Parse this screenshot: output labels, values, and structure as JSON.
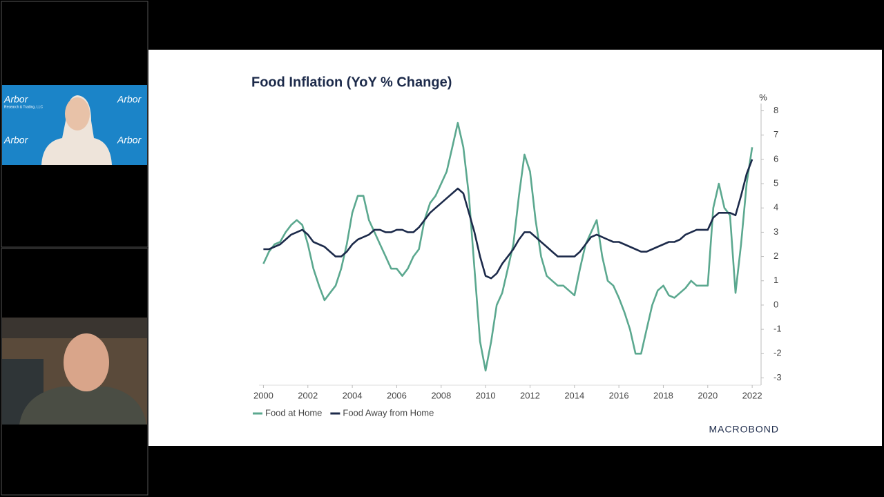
{
  "video_tiles": {
    "backdrop_brand": "Arbor",
    "backdrop_tagline": "Research & Trading, LLC"
  },
  "chart_data": {
    "type": "line",
    "title": "Food Inflation (YoY % Change)",
    "ylabel": "%",
    "source": "MACROBOND",
    "x": [
      2000,
      2000.25,
      2000.5,
      2000.75,
      2001,
      2001.25,
      2001.5,
      2001.75,
      2002,
      2002.25,
      2002.5,
      2002.75,
      2003,
      2003.25,
      2003.5,
      2003.75,
      2004,
      2004.25,
      2004.5,
      2004.75,
      2005,
      2005.25,
      2005.5,
      2005.75,
      2006,
      2006.25,
      2006.5,
      2006.75,
      2007,
      2007.25,
      2007.5,
      2007.75,
      2008,
      2008.25,
      2008.5,
      2008.75,
      2009,
      2009.25,
      2009.5,
      2009.75,
      2010,
      2010.25,
      2010.5,
      2010.75,
      2011,
      2011.25,
      2011.5,
      2011.75,
      2012,
      2012.25,
      2012.5,
      2012.75,
      2013,
      2013.25,
      2013.5,
      2013.75,
      2014,
      2014.25,
      2014.5,
      2014.75,
      2015,
      2015.25,
      2015.5,
      2015.75,
      2016,
      2016.25,
      2016.5,
      2016.75,
      2017,
      2017.25,
      2017.5,
      2017.75,
      2018,
      2018.25,
      2018.5,
      2018.75,
      2019,
      2019.25,
      2019.5,
      2019.75,
      2020,
      2020.25,
      2020.5,
      2020.75,
      2021,
      2021.25,
      2021.5,
      2021.75,
      2022
    ],
    "series": [
      {
        "name": "Food at Home",
        "color": "#5ba88f",
        "values": [
          1.7,
          2.2,
          2.5,
          2.6,
          3.0,
          3.3,
          3.5,
          3.3,
          2.5,
          1.5,
          0.8,
          0.2,
          0.5,
          0.8,
          1.5,
          2.5,
          3.8,
          4.5,
          4.5,
          3.5,
          3.0,
          2.5,
          2.0,
          1.5,
          1.5,
          1.2,
          1.5,
          2.0,
          2.3,
          3.5,
          4.2,
          4.5,
          5.0,
          5.5,
          6.5,
          7.5,
          6.5,
          4.5,
          1.5,
          -1.5,
          -2.7,
          -1.5,
          0,
          0.5,
          1.5,
          2.5,
          4.5,
          6.2,
          5.5,
          3.5,
          2.0,
          1.2,
          1.0,
          0.8,
          0.8,
          0.6,
          0.4,
          1.5,
          2.5,
          3.0,
          3.5,
          2.0,
          1.0,
          0.8,
          0.3,
          -0.3,
          -1.0,
          -2.0,
          -2.0,
          -1.0,
          0,
          0.6,
          0.8,
          0.4,
          0.3,
          0.5,
          0.7,
          1.0,
          0.8,
          0.8,
          0.8,
          4.0,
          5.0,
          4.0,
          3.7,
          0.5,
          2.5,
          5.0,
          6.5
        ]
      },
      {
        "name": "Food Away from Home",
        "color": "#1c2a4a",
        "values": [
          2.3,
          2.3,
          2.4,
          2.5,
          2.7,
          2.9,
          3.0,
          3.1,
          2.9,
          2.6,
          2.5,
          2.4,
          2.2,
          2.0,
          2.0,
          2.2,
          2.5,
          2.7,
          2.8,
          2.9,
          3.1,
          3.1,
          3.0,
          3.0,
          3.1,
          3.1,
          3.0,
          3.0,
          3.2,
          3.5,
          3.8,
          4.0,
          4.2,
          4.4,
          4.6,
          4.8,
          4.6,
          3.8,
          3.0,
          2.0,
          1.2,
          1.1,
          1.3,
          1.7,
          2.0,
          2.3,
          2.7,
          3.0,
          3.0,
          2.8,
          2.6,
          2.4,
          2.2,
          2.0,
          2.0,
          2.0,
          2.0,
          2.2,
          2.5,
          2.8,
          2.9,
          2.8,
          2.7,
          2.6,
          2.6,
          2.5,
          2.4,
          2.3,
          2.2,
          2.2,
          2.3,
          2.4,
          2.5,
          2.6,
          2.6,
          2.7,
          2.9,
          3.0,
          3.1,
          3.1,
          3.1,
          3.6,
          3.8,
          3.8,
          3.8,
          3.7,
          4.5,
          5.4,
          6.0
        ]
      }
    ],
    "xlim": [
      1999.8,
      2022.4
    ],
    "xticks": [
      2000,
      2002,
      2004,
      2006,
      2008,
      2010,
      2012,
      2014,
      2016,
      2018,
      2020,
      2022
    ],
    "ylim": [
      -3.3,
      8.3
    ],
    "yticks": [
      -3,
      -2,
      -1,
      0,
      1,
      2,
      3,
      4,
      5,
      6,
      7,
      8
    ],
    "grid": false,
    "legend": "bottom-left"
  }
}
